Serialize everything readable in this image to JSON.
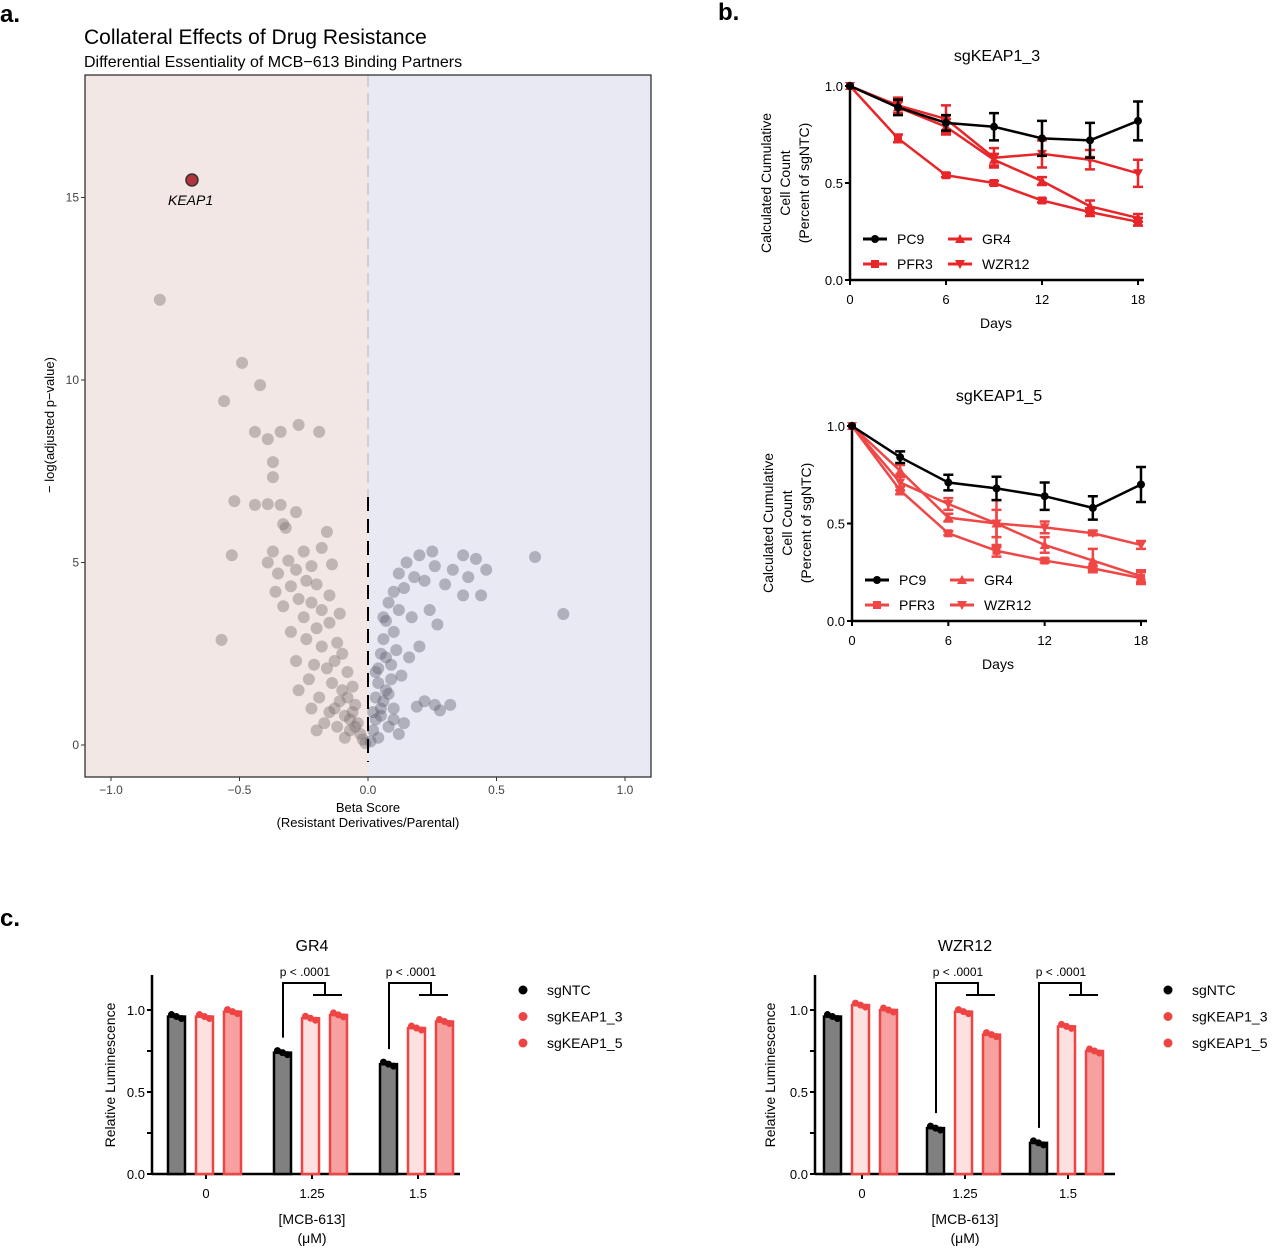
{
  "panel_labels": {
    "a": "a.",
    "b": "b.",
    "c": "c."
  },
  "chart_data": [
    {
      "type": "scatter",
      "title": "Collateral Effects of Drug Resistance",
      "subtitle": "Differential Essentiality of MCB−613 Binding Partners",
      "xlabel": "Beta Score",
      "xlabel2": "(Resistant Derivatives/Parental)",
      "ylabel": "− log(adjusted p−value)",
      "xlim": [
        -1.1,
        1.1
      ],
      "ylim": [
        -0.8,
        18.4
      ],
      "xticks": [
        "−1.0",
        "−0.5",
        "0.0",
        "0.5",
        "1.0"
      ],
      "xtick_values": [
        -1,
        -0.5,
        0,
        0.5,
        1
      ],
      "yticks": [
        "0",
        "5",
        "10",
        "15"
      ],
      "ytick_values": [
        0,
        5,
        10,
        15
      ],
      "background_colors": {
        "negative": "#f3e7e6",
        "positive": "#e8e9f3"
      },
      "point_colors": {
        "negative": "#7d7070",
        "positive": "#5f6170",
        "highlight": "#b3343a"
      },
      "highlight": {
        "label": "KEAP1",
        "x": -0.685,
        "y": 15.48
      },
      "points": [
        [
          -0.81,
          12.2
        ],
        [
          -0.49,
          10.47
        ],
        [
          -0.56,
          9.42
        ],
        [
          -0.42,
          9.86
        ],
        [
          -0.44,
          8.58
        ],
        [
          -0.39,
          8.38
        ],
        [
          -0.34,
          8.58
        ],
        [
          -0.27,
          8.77
        ],
        [
          -0.19,
          8.58
        ],
        [
          -0.37,
          7.75
        ],
        [
          -0.37,
          7.34
        ],
        [
          -0.52,
          6.68
        ],
        [
          -0.44,
          6.58
        ],
        [
          -0.39,
          6.6
        ],
        [
          -0.34,
          6.58
        ],
        [
          -0.28,
          6.38
        ],
        [
          -0.33,
          6.05
        ],
        [
          -0.32,
          5.95
        ],
        [
          -0.16,
          5.84
        ],
        [
          -0.53,
          5.2
        ],
        [
          -0.18,
          5.4
        ],
        [
          -0.25,
          5.3
        ],
        [
          -0.37,
          5.3
        ],
        [
          -0.39,
          5.0
        ],
        [
          -0.31,
          5.05
        ],
        [
          -0.22,
          4.9
        ],
        [
          -0.14,
          4.95
        ],
        [
          -0.35,
          4.7
        ],
        [
          -0.28,
          4.8
        ],
        [
          -0.24,
          4.5
        ],
        [
          -0.3,
          4.35
        ],
        [
          -0.2,
          4.4
        ],
        [
          -0.36,
          4.2
        ],
        [
          -0.15,
          4.1
        ],
        [
          -0.27,
          4.0
        ],
        [
          -0.22,
          3.9
        ],
        [
          -0.33,
          3.8
        ],
        [
          -0.18,
          3.7
        ],
        [
          -0.11,
          3.6
        ],
        [
          -0.25,
          3.5
        ],
        [
          -0.3,
          3.1
        ],
        [
          -0.2,
          3.2
        ],
        [
          -0.15,
          3.35
        ],
        [
          -0.57,
          2.88
        ],
        [
          -0.24,
          2.9
        ],
        [
          -0.18,
          2.7
        ],
        [
          -0.12,
          2.8
        ],
        [
          -0.1,
          2.5
        ],
        [
          -0.28,
          2.3
        ],
        [
          -0.21,
          2.2
        ],
        [
          -0.16,
          2.1
        ],
        [
          -0.08,
          2.0
        ],
        [
          -0.23,
          1.8
        ],
        [
          -0.14,
          1.7
        ],
        [
          -0.06,
          1.6
        ],
        [
          -0.27,
          1.5
        ],
        [
          -0.19,
          1.3
        ],
        [
          -0.11,
          1.2
        ],
        [
          -0.05,
          1.1
        ],
        [
          -0.22,
          1.0
        ],
        [
          -0.15,
          0.9
        ],
        [
          -0.09,
          0.8
        ],
        [
          -0.04,
          0.6
        ],
        [
          -0.12,
          0.5
        ],
        [
          -0.07,
          0.4
        ],
        [
          -0.03,
          0.3
        ],
        [
          -0.17,
          0.6
        ],
        [
          -0.1,
          1.5
        ],
        [
          -0.13,
          2.3
        ],
        [
          -0.06,
          0.9
        ],
        [
          -0.02,
          0.15
        ],
        [
          -0.08,
          1.3
        ],
        [
          -0.05,
          0.5
        ],
        [
          -0.2,
          0.4
        ],
        [
          -0.01,
          0.05
        ],
        [
          -0.09,
          0.2
        ],
        [
          -0.13,
          1.0
        ],
        [
          -0.07,
          0.7
        ],
        [
          0.65,
          5.15
        ],
        [
          0.76,
          3.59
        ],
        [
          0.44,
          4.1
        ],
        [
          0.37,
          4.1
        ],
        [
          0.39,
          4.6
        ],
        [
          0.32,
          1.1
        ],
        [
          0.46,
          4.8
        ],
        [
          0.37,
          5.2
        ],
        [
          0.42,
          5.1
        ],
        [
          0.25,
          5.3
        ],
        [
          0.2,
          5.2
        ],
        [
          0.15,
          5.0
        ],
        [
          0.12,
          4.7
        ],
        [
          0.18,
          4.6
        ],
        [
          0.26,
          4.9
        ],
        [
          0.3,
          4.4
        ],
        [
          0.1,
          4.2
        ],
        [
          0.14,
          4.3
        ],
        [
          0.22,
          4.5
        ],
        [
          0.33,
          4.8
        ],
        [
          0.08,
          3.9
        ],
        [
          0.12,
          3.7
        ],
        [
          0.17,
          3.5
        ],
        [
          0.24,
          3.7
        ],
        [
          0.27,
          3.3
        ],
        [
          0.07,
          3.4
        ],
        [
          0.1,
          3.1
        ],
        [
          0.2,
          2.7
        ],
        [
          0.16,
          2.4
        ],
        [
          0.06,
          2.9
        ],
        [
          0.05,
          2.5
        ],
        [
          0.09,
          2.2
        ],
        [
          0.13,
          1.9
        ],
        [
          0.04,
          2.1
        ],
        [
          0.04,
          1.7
        ],
        [
          0.07,
          1.5
        ],
        [
          0.22,
          1.2
        ],
        [
          0.26,
          1.1
        ],
        [
          0.19,
          1.05
        ],
        [
          0.28,
          0.95
        ],
        [
          0.1,
          1.0
        ],
        [
          0.03,
          1.3
        ],
        [
          0.05,
          1.0
        ],
        [
          0.14,
          0.6
        ],
        [
          0.03,
          0.7
        ],
        [
          0.08,
          0.5
        ],
        [
          0.02,
          0.4
        ],
        [
          0.12,
          0.3
        ],
        [
          0.04,
          0.2
        ],
        [
          0.01,
          0.1
        ],
        [
          0.06,
          1.2
        ],
        [
          0.09,
          1.8
        ],
        [
          0.11,
          2.6
        ],
        [
          0.06,
          3.5
        ],
        [
          0.03,
          2.0
        ],
        [
          0.05,
          0.8
        ],
        [
          0.08,
          1.4
        ],
        [
          0.02,
          0.9
        ],
        [
          0.07,
          2.4
        ],
        [
          0.1,
          0.7
        ]
      ]
    },
    {
      "type": "line",
      "title": "sgKEAP1_3",
      "xlabel": "Days",
      "ylabel": [
        "Calculated Cumulative",
        "Cell Count",
        "(Percent of sgNTC)"
      ],
      "x": [
        0,
        3,
        6,
        9,
        12,
        15,
        18
      ],
      "xticks": [
        "0",
        "6",
        "12",
        "18"
      ],
      "xtick_values": [
        0,
        6,
        12,
        18
      ],
      "yticks": [
        "0.0",
        "0.5",
        "1.0"
      ],
      "ytick_values": [
        0,
        0.5,
        1
      ],
      "xlim": [
        0,
        18
      ],
      "ylim": [
        0,
        1
      ],
      "legend": "bottom-left",
      "series": [
        {
          "name": "PC9",
          "marker": "circle",
          "color": "#000000",
          "values": [
            1,
            0.89,
            0.81,
            0.79,
            0.73,
            0.72,
            0.82
          ],
          "error": [
            0,
            0.04,
            0.04,
            0.07,
            0.09,
            0.09,
            0.1
          ]
        },
        {
          "name": "GR4",
          "marker": "triangle",
          "color": "#e8262a",
          "values": [
            1,
            0.89,
            0.79,
            0.62,
            0.51,
            0.38,
            0.32
          ],
          "error": [
            0,
            0.03,
            0.04,
            0.03,
            0.02,
            0.03,
            0.02
          ]
        },
        {
          "name": "PFR3",
          "marker": "square",
          "color": "#e8262a",
          "values": [
            1,
            0.73,
            0.54,
            0.5,
            0.41,
            0.35,
            0.3
          ],
          "error": [
            0,
            0.02,
            0.01,
            0.01,
            0.01,
            0.02,
            0.02
          ]
        },
        {
          "name": "WZR12",
          "marker": "triangle-down",
          "color": "#e8262a",
          "values": [
            1,
            0.9,
            0.83,
            0.63,
            0.65,
            0.62,
            0.55
          ],
          "error": [
            0,
            0.04,
            0.07,
            0.05,
            0.07,
            0.05,
            0.07
          ]
        }
      ]
    },
    {
      "type": "line",
      "title": "sgKEAP1_5",
      "xlabel": "Days",
      "ylabel": [
        "Calculated Cumulative",
        "Cell Count",
        "(Percent of sgNTC)"
      ],
      "x": [
        0,
        3,
        6,
        9,
        12,
        15,
        18
      ],
      "xticks": [
        "0",
        "6",
        "12",
        "18"
      ],
      "xtick_values": [
        0,
        6,
        12,
        18
      ],
      "yticks": [
        "0.0",
        "0.5",
        "1.0"
      ],
      "ytick_values": [
        0,
        0.5,
        1
      ],
      "xlim": [
        0,
        18
      ],
      "ylim": [
        0,
        1
      ],
      "legend": "bottom-left",
      "series": [
        {
          "name": "PC9",
          "marker": "circle",
          "color": "#000000",
          "values": [
            1,
            0.84,
            0.71,
            0.68,
            0.64,
            0.58,
            0.7
          ],
          "error": [
            0,
            0.03,
            0.04,
            0.06,
            0.07,
            0.06,
            0.09
          ]
        },
        {
          "name": "GR4",
          "marker": "triangle",
          "color": "#ef4646",
          "values": [
            1,
            0.77,
            0.53,
            0.5,
            0.39,
            0.31,
            0.23
          ],
          "error": [
            0,
            0.03,
            0.02,
            0.12,
            0.04,
            0.06,
            0.03
          ]
        },
        {
          "name": "PFR3",
          "marker": "square",
          "color": "#ef4646",
          "values": [
            1,
            0.67,
            0.45,
            0.36,
            0.31,
            0.27,
            0.22
          ],
          "error": [
            0,
            0.02,
            0.01,
            0.03,
            0.01,
            0.01,
            0.03
          ]
        },
        {
          "name": "WZR12",
          "marker": "triangle-down",
          "color": "#ef4646",
          "values": [
            1,
            0.71,
            0.6,
            0.5,
            0.48,
            0.45,
            0.39
          ],
          "error": [
            0,
            0.04,
            0.03,
            0.07,
            0.03,
            0.01,
            0.02
          ]
        }
      ]
    },
    {
      "type": "bar",
      "title": "GR4",
      "ylabel": "Relative Luminescence",
      "xlabel": "[MCB-613]",
      "xlabel2": "(μM)",
      "categories": [
        "0",
        "1.25",
        "1.5"
      ],
      "yticks": [
        "0.0",
        "0.5",
        "1.0"
      ],
      "ytick_values": [
        0,
        0.5,
        1
      ],
      "ylim": [
        0,
        1.2
      ],
      "legend": "right",
      "annotations": [
        "p < .0001",
        "p < .0001"
      ],
      "series": [
        {
          "name": "sgNTC",
          "fill": "#808080",
          "stroke": "#000000",
          "values": [
            0.96,
            0.74,
            0.67
          ]
        },
        {
          "name": "sgKEAP1_3",
          "fill": "#fde0e0",
          "stroke": "#ee4444",
          "values": [
            0.96,
            0.95,
            0.89
          ]
        },
        {
          "name": "sgKEAP1_5",
          "fill": "#f7a0a0",
          "stroke": "#ee4444",
          "values": [
            0.99,
            0.97,
            0.93
          ]
        }
      ]
    },
    {
      "type": "bar",
      "title": "WZR12",
      "ylabel": "Relative Luminescence",
      "xlabel": "[MCB-613]",
      "xlabel2": "(μM)",
      "categories": [
        "0",
        "1.25",
        "1.5"
      ],
      "yticks": [
        "0.0",
        "0.5",
        "1.0"
      ],
      "ytick_values": [
        0,
        0.5,
        1
      ],
      "ylim": [
        0,
        1.2
      ],
      "legend": "right",
      "annotations": [
        "p < .0001",
        "p < .0001"
      ],
      "series": [
        {
          "name": "sgNTC",
          "fill": "#808080",
          "stroke": "#000000",
          "values": [
            0.96,
            0.28,
            0.19
          ]
        },
        {
          "name": "sgKEAP1_3",
          "fill": "#fde0e0",
          "stroke": "#ee4444",
          "values": [
            1.03,
            0.99,
            0.9
          ]
        },
        {
          "name": "sgKEAP1_5",
          "fill": "#f7a0a0",
          "stroke": "#ee4444",
          "values": [
            1.0,
            0.85,
            0.75
          ]
        }
      ]
    }
  ]
}
